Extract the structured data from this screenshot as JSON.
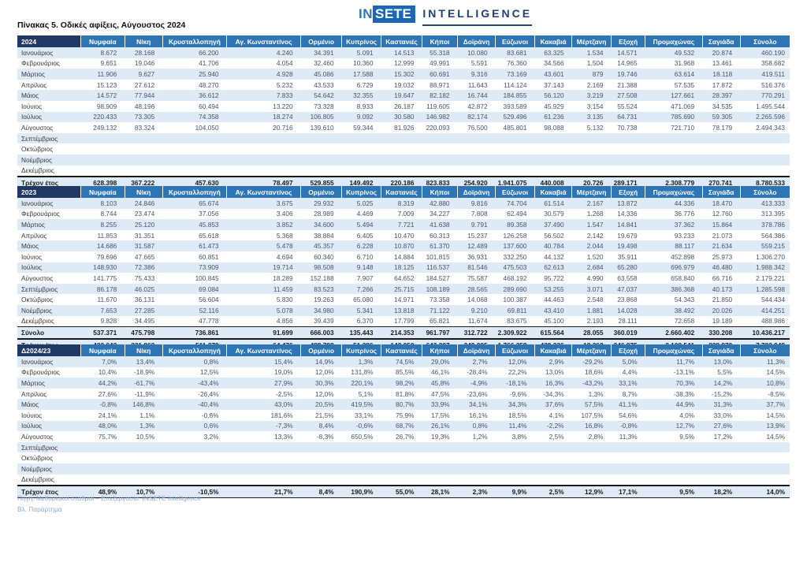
{
  "logo": {
    "in": "IN",
    "sete": "SETE",
    "intelligence": "INTELLIGENCE"
  },
  "title": "Πίνακας 5. Οδικές αφίξεις, Αύγουστος 2024",
  "colors": {
    "corner_bg": "#1F3864",
    "header_bg": "#2E75B6",
    "row_stripe": "#DEEBF7",
    "logo_box": "#1B67B3",
    "logo_text": "#1F3F77",
    "footnote_text": "#8FAADC"
  },
  "columns": [
    "Νυμφαία",
    "Νίκη",
    "Κρυσταλλοπηγή",
    "Αγ. Κωνσταντίνος",
    "Ορμένιο",
    "Κυπρίνος",
    "Καστανιές",
    "Κήποι",
    "Δοϊράνη",
    "Εύζωνοι",
    "Κακαβιά",
    "Μέρτζανη",
    "Εξοχή",
    "Προμαχώνας",
    "Σαγιάδα",
    "Σύνολο"
  ],
  "tables": [
    {
      "corner": "2024",
      "rows": [
        {
          "label": "Ιανουάριος",
          "type": "month",
          "values": [
            "8.672",
            "28.168",
            "66.200",
            "4.240",
            "34.391",
            "5.091",
            "14.513",
            "55.318",
            "10.080",
            "83.681",
            "63.325",
            "1.534",
            "14.571",
            "49.532",
            "20.874",
            "460.190"
          ]
        },
        {
          "label": "Φεβρουάριος",
          "type": "month",
          "values": [
            "9.651",
            "19.046",
            "41.706",
            "4.054",
            "32.460",
            "10.360",
            "12.999",
            "49.991",
            "5.591",
            "76.360",
            "34.566",
            "1.504",
            "14.965",
            "31.968",
            "13.461",
            "358.682"
          ]
        },
        {
          "label": "Μάρτιος",
          "type": "month",
          "values": [
            "11.906",
            "9.627",
            "25.940",
            "4.928",
            "45.086",
            "17.588",
            "15.302",
            "60.691",
            "9.316",
            "73.169",
            "43.601",
            "879",
            "19.746",
            "63.614",
            "18.118",
            "419.511"
          ]
        },
        {
          "label": "Απρίλιος",
          "type": "month",
          "values": [
            "15.123",
            "27.612",
            "48.270",
            "5.232",
            "43.533",
            "6.729",
            "19.032",
            "88.971",
            "11.643",
            "114.124",
            "37.143",
            "2.169",
            "21.388",
            "57.535",
            "17.872",
            "516.376"
          ]
        },
        {
          "label": "Μάιος",
          "type": "month",
          "values": [
            "14.572",
            "77.944",
            "36.612",
            "7.833",
            "54.642",
            "32.355",
            "19.647",
            "82.182",
            "16.744",
            "184.855",
            "56.120",
            "3.219",
            "27.508",
            "127.661",
            "28.397",
            "770.291"
          ]
        },
        {
          "label": "Ιούνιος",
          "type": "month",
          "values": [
            "98.909",
            "48.196",
            "60.494",
            "13.220",
            "73.328",
            "8.933",
            "26.187",
            "119.605",
            "42.872",
            "393.589",
            "45.929",
            "3.154",
            "55.524",
            "471.069",
            "34.535",
            "1.495.544"
          ]
        },
        {
          "label": "Ιούλιος",
          "type": "month",
          "values": [
            "220.433",
            "73.305",
            "74.358",
            "18.274",
            "106.805",
            "9.092",
            "30.580",
            "146.982",
            "82.174",
            "529.496",
            "61.236",
            "3.135",
            "64.731",
            "785.690",
            "59.305",
            "2.265.596"
          ]
        },
        {
          "label": "Αύγουστος",
          "type": "month",
          "values": [
            "249.132",
            "83.324",
            "104.050",
            "20.716",
            "139.610",
            "59.344",
            "81.926",
            "220.093",
            "76.500",
            "485.801",
            "98.088",
            "5.132",
            "70.738",
            "721.710",
            "78.179",
            "2.494.343"
          ]
        },
        {
          "label": "Σεπτέμβριος",
          "type": "month",
          "values": [
            "",
            "",
            "",
            "",
            "",
            "",
            "",
            "",
            "",
            "",
            "",
            "",
            "",
            "",
            "",
            ""
          ]
        },
        {
          "label": "Οκτώβριος",
          "type": "month",
          "values": [
            "",
            "",
            "",
            "",
            "",
            "",
            "",
            "",
            "",
            "",
            "",
            "",
            "",
            "",
            "",
            ""
          ]
        },
        {
          "label": "Νοέμβριος",
          "type": "month",
          "values": [
            "",
            "",
            "",
            "",
            "",
            "",
            "",
            "",
            "",
            "",
            "",
            "",
            "",
            "",
            "",
            ""
          ]
        },
        {
          "label": "Δεκέμβριος",
          "type": "month",
          "values": [
            "",
            "",
            "",
            "",
            "",
            "",
            "",
            "",
            "",
            "",
            "",
            "",
            "",
            "",
            "",
            ""
          ]
        },
        {
          "label": "Τρέχον έτος",
          "type": "cur",
          "values": [
            "628.398",
            "367.222",
            "457.630",
            "78.497",
            "529.855",
            "149.492",
            "220.186",
            "823.833",
            "254.920",
            "1.941.075",
            "440.008",
            "20.726",
            "289.171",
            "2.308.779",
            "270.741",
            "8.780.533"
          ]
        }
      ]
    },
    {
      "corner": "2023",
      "rows": [
        {
          "label": "Ιανουάριος",
          "type": "month",
          "values": [
            "8.103",
            "24.846",
            "65.674",
            "3.675",
            "29.932",
            "5.025",
            "8.319",
            "42.880",
            "9.816",
            "74.704",
            "61.514",
            "2.167",
            "13.872",
            "44.336",
            "18.470",
            "413.333"
          ]
        },
        {
          "label": "Φεβρουάριος",
          "type": "month",
          "values": [
            "8.744",
            "23.474",
            "37.056",
            "3.406",
            "28.989",
            "4.469",
            "7.009",
            "34.227",
            "7.808",
            "62.494",
            "30.579",
            "1.268",
            "14.336",
            "36.776",
            "12.760",
            "313.395"
          ]
        },
        {
          "label": "Μάρτιος",
          "type": "month",
          "values": [
            "8.255",
            "25.120",
            "45.853",
            "3.852",
            "34.600",
            "5.494",
            "7.721",
            "41.638",
            "9.791",
            "89.358",
            "37.490",
            "1.547",
            "14.841",
            "37.362",
            "15.864",
            "378.786"
          ]
        },
        {
          "label": "Απρίλιος",
          "type": "month",
          "values": [
            "11.853",
            "31.351",
            "65.618",
            "5.368",
            "38.884",
            "6.405",
            "10.470",
            "60.313",
            "15.237",
            "126.258",
            "56.502",
            "2.142",
            "19.679",
            "93.233",
            "21.073",
            "564.386"
          ]
        },
        {
          "label": "Μάιος",
          "type": "month",
          "values": [
            "14.686",
            "31.587",
            "61.473",
            "5.478",
            "45.357",
            "6.228",
            "10.870",
            "61.370",
            "12.489",
            "137.600",
            "40.784",
            "2.044",
            "19.498",
            "88.117",
            "21.634",
            "559.215"
          ]
        },
        {
          "label": "Ιούνιος",
          "type": "month",
          "values": [
            "79.696",
            "47.665",
            "60.851",
            "4.694",
            "60.340",
            "6.710",
            "14.884",
            "101.815",
            "36.931",
            "332.250",
            "44.132",
            "1.520",
            "35.911",
            "452.898",
            "25.973",
            "1.306.270"
          ]
        },
        {
          "label": "Ιούλιος",
          "type": "month",
          "values": [
            "148.930",
            "72.386",
            "73.909",
            "19.714",
            "98.508",
            "9.148",
            "18.125",
            "116.537",
            "81.546",
            "475.503",
            "62.613",
            "2.684",
            "65.280",
            "696.979",
            "46.480",
            "1.988.342"
          ]
        },
        {
          "label": "Αύγουστος",
          "type": "month",
          "values": [
            "141.775",
            "75.433",
            "100.845",
            "18.289",
            "152.188",
            "7.907",
            "64.652",
            "184.527",
            "75.587",
            "468.192",
            "95.722",
            "4.990",
            "63.558",
            "658.840",
            "66.716",
            "2.179.221"
          ]
        },
        {
          "label": "Σεπτέμβριος",
          "type": "month",
          "values": [
            "86.178",
            "46.025",
            "69.084",
            "11.459",
            "83.523",
            "7.266",
            "25.715",
            "108.189",
            "28.565",
            "289.690",
            "53.255",
            "3.071",
            "47.037",
            "386.368",
            "40.173",
            "1.285.598"
          ]
        },
        {
          "label": "Οκτώβριος",
          "type": "month",
          "values": [
            "11.670",
            "36.131",
            "56.604",
            "5.830",
            "19.263",
            "65.080",
            "14.971",
            "73.358",
            "14.068",
            "100.387",
            "44.463",
            "2.548",
            "23.868",
            "54.343",
            "21.850",
            "544.434"
          ]
        },
        {
          "label": "Νοέμβριος",
          "type": "month",
          "values": [
            "7.653",
            "27.285",
            "52.116",
            "5.078",
            "34.980",
            "5.341",
            "13.818",
            "71.122",
            "9.210",
            "69.811",
            "43.410",
            "1.881",
            "14.028",
            "38.492",
            "20.026",
            "414.251"
          ]
        },
        {
          "label": "Δεκέμβριος",
          "type": "month",
          "values": [
            "9.828",
            "34.495",
            "47.778",
            "4.856",
            "39.439",
            "6.370",
            "17.799",
            "65.821",
            "11.674",
            "83.675",
            "45.100",
            "2.193",
            "28.111",
            "72.658",
            "19.189",
            "488.986"
          ]
        },
        {
          "label": "Σύνολο",
          "type": "sum",
          "values": [
            "537.371",
            "475.798",
            "736.861",
            "91.699",
            "666.003",
            "135.443",
            "214.353",
            "961.797",
            "312.722",
            "2.309.922",
            "615.564",
            "28.055",
            "360.019",
            "2.660.402",
            "330.208",
            "10.436.217"
          ]
        },
        {
          "label": "Τρέχον έτος",
          "type": "cur",
          "values": [
            "422.042",
            "331.862",
            "511.279",
            "64.476",
            "488.798",
            "51.386",
            "142.050",
            "643.307",
            "249.205",
            "1.766.359",
            "429.336",
            "18.362",
            "246.975",
            "2.108.541",
            "228.970",
            "7.702.948"
          ]
        }
      ]
    },
    {
      "corner": "Δ2024/23",
      "rows": [
        {
          "label": "Ιανουάριος",
          "type": "month",
          "values": [
            "7,0%",
            "13,4%",
            "0,8%",
            "15,4%",
            "14,9%",
            "1,3%",
            "74,5%",
            "29,0%",
            "2,7%",
            "12,0%",
            "2,9%",
            "-29,2%",
            "5,0%",
            "11,7%",
            "13,0%",
            "11,3%"
          ]
        },
        {
          "label": "Φεβρουάριος",
          "type": "month",
          "values": [
            "10,4%",
            "-18,9%",
            "12,5%",
            "19,0%",
            "12,0%",
            "131,8%",
            "85,5%",
            "46,1%",
            "-28,4%",
            "22,2%",
            "13,0%",
            "18,6%",
            "4,4%",
            "-13,1%",
            "5,5%",
            "14,5%"
          ]
        },
        {
          "label": "Μάρτιος",
          "type": "month",
          "values": [
            "44,2%",
            "-61,7%",
            "-43,4%",
            "27,9%",
            "30,3%",
            "220,1%",
            "98,2%",
            "45,8%",
            "-4,9%",
            "-18,1%",
            "16,3%",
            "-43,2%",
            "33,1%",
            "70,3%",
            "14,2%",
            "10,8%"
          ]
        },
        {
          "label": "Απρίλιος",
          "type": "month",
          "values": [
            "27,6%",
            "-11,9%",
            "-26,4%",
            "-2,5%",
            "12,0%",
            "5,1%",
            "81,8%",
            "47,5%",
            "-23,6%",
            "-9,6%",
            "-34,3%",
            "1,3%",
            "8,7%",
            "-38,3%",
            "-15,2%",
            "-8,5%"
          ]
        },
        {
          "label": "Μάιος",
          "type": "month",
          "values": [
            "-0,8%",
            "146,8%",
            "-40,4%",
            "43,0%",
            "20,5%",
            "419,5%",
            "80,7%",
            "33,9%",
            "34,1%",
            "34,3%",
            "37,6%",
            "57,5%",
            "41,1%",
            "44,9%",
            "31,3%",
            "37,7%"
          ]
        },
        {
          "label": "Ιούνιος",
          "type": "month",
          "values": [
            "24,1%",
            "1,1%",
            "-0,6%",
            "181,6%",
            "21,5%",
            "33,1%",
            "75,9%",
            "17,5%",
            "16,1%",
            "18,5%",
            "4,1%",
            "107,5%",
            "54,6%",
            "4,0%",
            "33,0%",
            "14,5%"
          ]
        },
        {
          "label": "Ιούλιος",
          "type": "month",
          "values": [
            "48,0%",
            "1,3%",
            "0,6%",
            "-7,3%",
            "8,4%",
            "-0,6%",
            "68,7%",
            "26,1%",
            "0,8%",
            "11,4%",
            "-2,2%",
            "16,8%",
            "-0,8%",
            "12,7%",
            "27,6%",
            "13,9%"
          ]
        },
        {
          "label": "Αύγουστος",
          "type": "month",
          "values": [
            "75,7%",
            "10,5%",
            "3,2%",
            "13,3%",
            "-8,3%",
            "650,5%",
            "26,7%",
            "19,3%",
            "1,2%",
            "3,8%",
            "2,5%",
            "2,8%",
            "11,3%",
            "9,5%",
            "17,2%",
            "14,5%"
          ]
        },
        {
          "label": "Σεπτέμβριος",
          "type": "month",
          "values": [
            "",
            "",
            "",
            "",
            "",
            "",
            "",
            "",
            "",
            "",
            "",
            "",
            "",
            "",
            "",
            ""
          ]
        },
        {
          "label": "Οκτώβριος",
          "type": "month",
          "values": [
            "",
            "",
            "",
            "",
            "",
            "",
            "",
            "",
            "",
            "",
            "",
            "",
            "",
            "",
            "",
            ""
          ]
        },
        {
          "label": "Νοέμβριος",
          "type": "month",
          "values": [
            "",
            "",
            "",
            "",
            "",
            "",
            "",
            "",
            "",
            "",
            "",
            "",
            "",
            "",
            "",
            ""
          ]
        },
        {
          "label": "Δεκέμβριος",
          "type": "month",
          "values": [
            "",
            "",
            "",
            "",
            "",
            "",
            "",
            "",
            "",
            "",
            "",
            "",
            "",
            "",
            "",
            ""
          ]
        },
        {
          "label": "Τρέχον έτος",
          "type": "cur",
          "values": [
            "48,9%",
            "10,7%",
            "-10,5%",
            "21,7%",
            "8,4%",
            "190,9%",
            "55,0%",
            "28,1%",
            "2,3%",
            "9,9%",
            "2,5%",
            "12,9%",
            "17,1%",
            "9,5%",
            "18,2%",
            "14,0%"
          ]
        }
      ]
    }
  ],
  "footnotes": {
    "source": "Πηγή: Μεθοριακοί σταθμοί – Επεξεργασία: INSETE Intelligence",
    "appendix": "Βλ. Παράρτημα"
  }
}
